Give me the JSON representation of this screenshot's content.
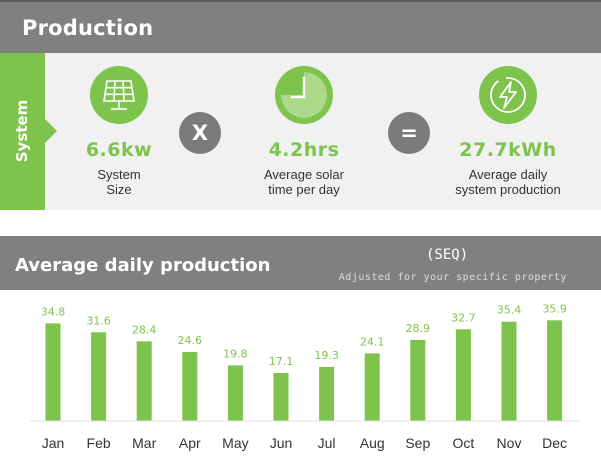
{
  "production": {
    "title": "Production",
    "system_tab": "System",
    "stats": [
      {
        "icon": "solar-panel-icon",
        "value": "6.6kw",
        "label_lines": [
          "System",
          "Size"
        ]
      },
      {
        "icon": "clock-icon",
        "value": "4.2hrs",
        "label_lines": [
          "Average solar",
          "time per day"
        ]
      },
      {
        "icon": "lightning-bolt-icon",
        "value": "27.7kWh",
        "label_lines": [
          "Average daily",
          "system production"
        ]
      }
    ],
    "operators": {
      "multiply": "X",
      "equals": "="
    }
  },
  "average": {
    "title": "Average daily production",
    "region": "(SEQ)",
    "note": "Adjusted for your specific property"
  },
  "colors": {
    "accent": "#7ec34b",
    "header_bg": "#808080",
    "panel_bg": "#f1f1f1",
    "operator_bg": "#7b7b7b"
  },
  "chart_data": {
    "type": "bar",
    "categories": [
      "Jan",
      "Feb",
      "Mar",
      "Apr",
      "May",
      "Jun",
      "Jul",
      "Aug",
      "Sep",
      "Oct",
      "Nov",
      "Dec"
    ],
    "values": [
      34.8,
      31.6,
      28.4,
      24.6,
      19.8,
      17.1,
      19.3,
      24.1,
      28.9,
      32.7,
      35.4,
      35.9
    ],
    "value_labels": [
      "34.8",
      "31.6",
      "28.4",
      "24.6",
      "19.8",
      "17.1",
      "19.3",
      "24.1",
      "28.9",
      "32.7",
      "35.4",
      "35.9"
    ],
    "title": "",
    "xlabel": "",
    "ylabel": "",
    "ylim": [
      0,
      36
    ],
    "grid": false,
    "legend": "none"
  }
}
